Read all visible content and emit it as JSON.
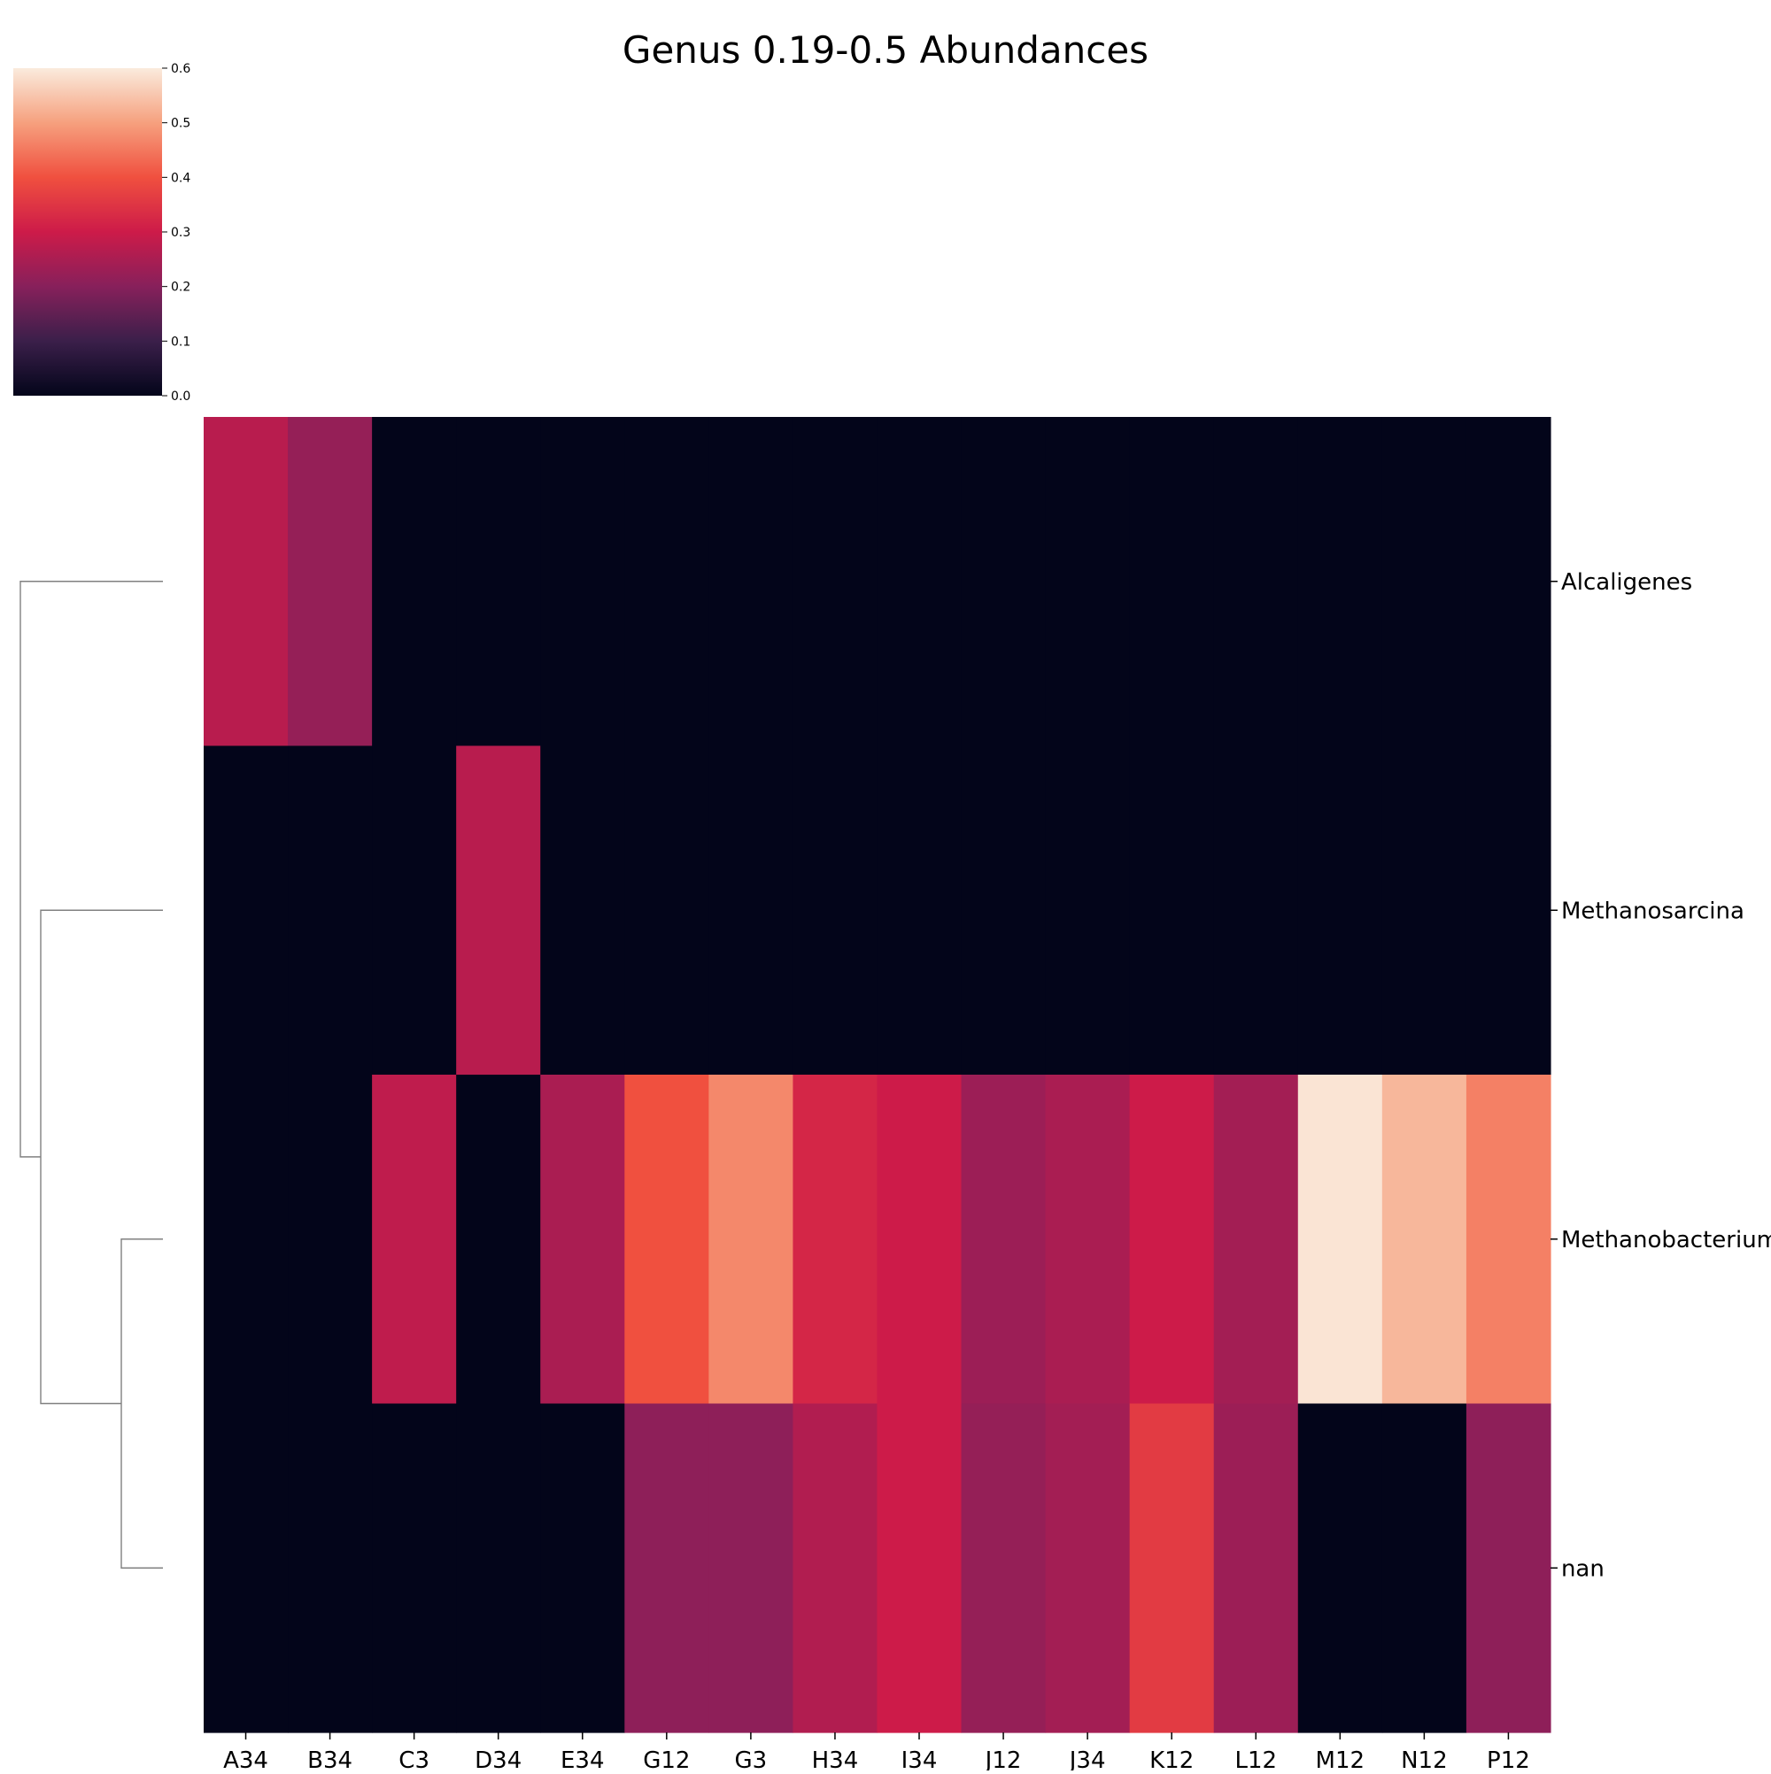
{
  "chart_data": {
    "type": "heatmap",
    "title": "Genus 0.19-0.5 Abundances",
    "columns": [
      "A34",
      "B34",
      "C3",
      "D34",
      "E34",
      "G12",
      "G3",
      "H34",
      "I34",
      "J12",
      "J34",
      "K12",
      "L12",
      "M12",
      "N12",
      "P12"
    ],
    "rows": [
      "Alcaligenes",
      "Methanosarcina",
      "Methanobacterium",
      "nan"
    ],
    "values": [
      [
        0.27,
        0.22,
        0.0,
        0.0,
        0.0,
        0.0,
        0.0,
        0.0,
        0.0,
        0.0,
        0.0,
        0.0,
        0.0,
        0.0,
        0.0,
        0.0
      ],
      [
        0.0,
        0.0,
        0.0,
        0.27,
        0.0,
        0.0,
        0.0,
        0.0,
        0.0,
        0.0,
        0.0,
        0.0,
        0.0,
        0.0,
        0.0,
        0.0
      ],
      [
        0.0,
        0.0,
        0.28,
        0.0,
        0.25,
        0.4,
        0.47,
        0.32,
        0.3,
        0.23,
        0.25,
        0.3,
        0.24,
        0.59,
        0.53,
        0.46
      ],
      [
        0.0,
        0.0,
        0.0,
        0.0,
        0.0,
        0.21,
        0.21,
        0.26,
        0.3,
        0.22,
        0.24,
        0.36,
        0.23,
        0.0,
        0.0,
        0.21
      ]
    ],
    "colorbar": {
      "colormap": "rocket",
      "vmin": 0.0,
      "vmax": 0.6,
      "ticks": [
        "0.0",
        "0.1",
        "0.2",
        "0.3",
        "0.4",
        "0.5",
        "0.6"
      ]
    },
    "dendrogram": "rows",
    "grid": false
  }
}
